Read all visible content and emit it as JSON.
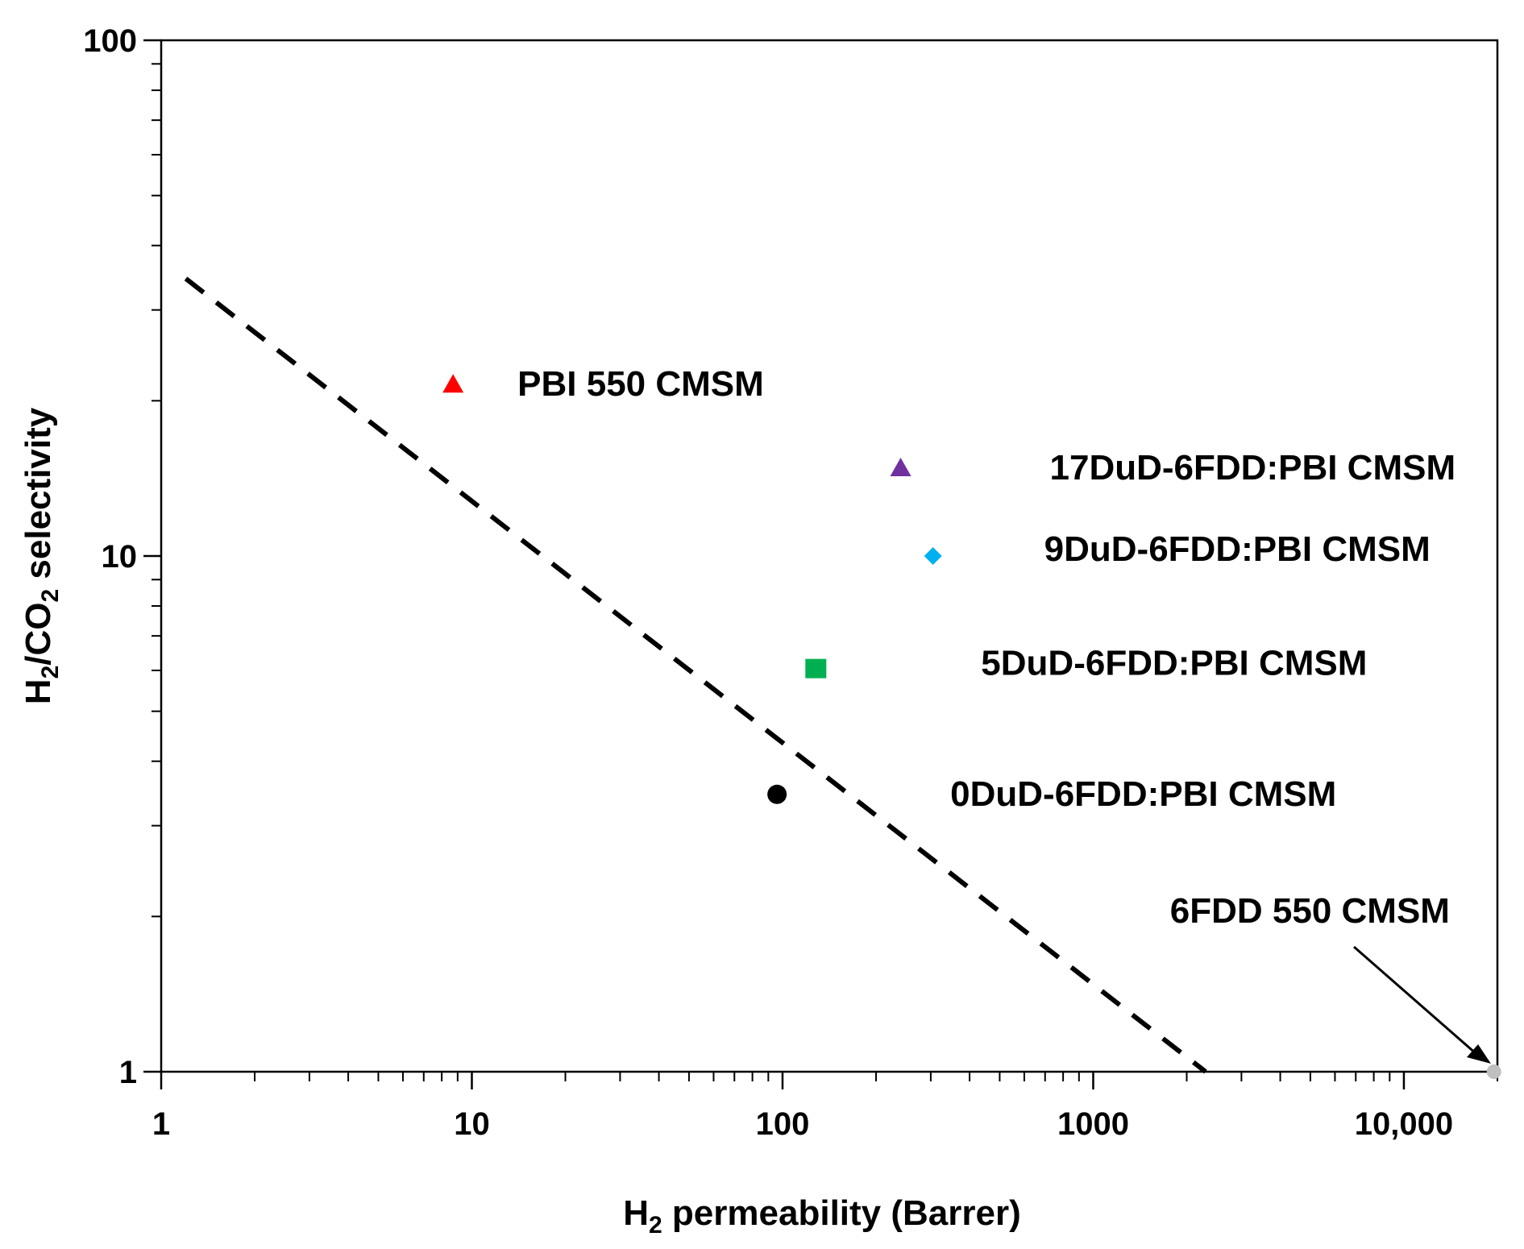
{
  "chart_data": {
    "type": "scatter",
    "title": "",
    "xscale": "log",
    "yscale": "log",
    "xlim": [
      1,
      20000
    ],
    "ylim": [
      1,
      100
    ],
    "grid": false,
    "x_ticks": [
      {
        "value": 1,
        "label": "1"
      },
      {
        "value": 10,
        "label": "10"
      },
      {
        "value": 100,
        "label": "100"
      },
      {
        "value": 1000,
        "label": "1000"
      },
      {
        "value": 10000,
        "label": "10,000"
      }
    ],
    "y_ticks": [
      {
        "value": 1,
        "label": "1"
      },
      {
        "value": 10,
        "label": "10"
      },
      {
        "value": 100,
        "label": "100"
      }
    ],
    "xlabel": {
      "main": "H",
      "sub": "2",
      "rest": " permeability (Barrer)"
    },
    "ylabel": {
      "p1": "H",
      "s1": "2",
      "p2": "/CO",
      "s2": "2",
      "p3": " selectivity"
    },
    "series": [
      {
        "name": "PBI 550 CMSM",
        "x": 8.7,
        "y": 21.5,
        "marker": "triangle",
        "color": "#ff0000",
        "label": "PBI 550 CMSM"
      },
      {
        "name": "17DuD-6FDD:PBI CMSM",
        "x": 240,
        "y": 14.8,
        "marker": "triangle",
        "color": "#7030a0",
        "label": "17DuD-6FDD:PBI CMSM"
      },
      {
        "name": "9DuD-6FDD:PBI CMSM",
        "x": 305,
        "y": 10.0,
        "marker": "diamond",
        "color": "#00b0f0",
        "label": "9DuD-6FDD:PBI CMSM"
      },
      {
        "name": "5DuD-6FDD:PBI CMSM",
        "x": 128,
        "y": 6.05,
        "marker": "square",
        "color": "#00b050",
        "label": "5DuD-6FDD:PBI CMSM"
      },
      {
        "name": "0DuD-6FDD:PBI CMSM",
        "x": 96,
        "y": 3.45,
        "marker": "circle",
        "color": "#000000",
        "label": "0DuD-6FDD:PBI CMSM"
      },
      {
        "name": "6FDD 550 CMSM",
        "x": 19500,
        "y": 1.0,
        "marker": "circle",
        "color": "#bfbfbf",
        "label": "6FDD 550 CMSM"
      }
    ],
    "upper_bound": {
      "style": "dashed",
      "color": "#000000",
      "x": [
        1.2,
        2300
      ],
      "y": [
        34.5,
        1.0
      ]
    }
  }
}
